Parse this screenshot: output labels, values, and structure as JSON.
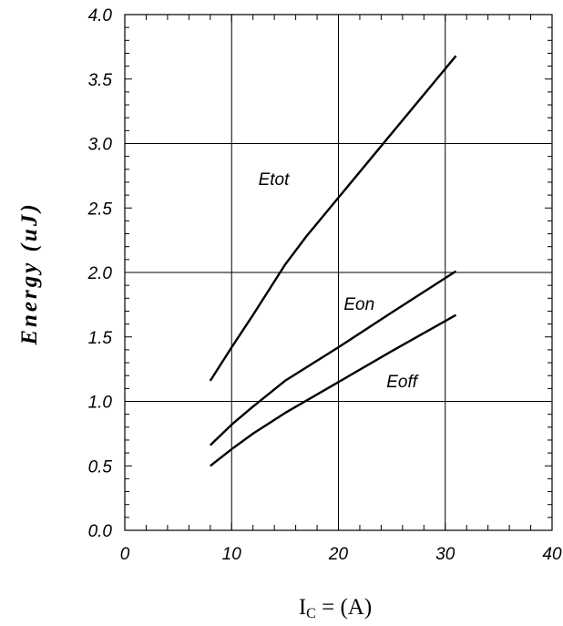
{
  "chart_data": {
    "type": "line",
    "xlabel_main": "I",
    "xlabel_sub": "C",
    "xlabel_rest": " = (A)",
    "ylabel": "Energy (uJ)",
    "xlim": [
      0,
      40
    ],
    "ylim": [
      0,
      4.0
    ],
    "x_ticks": [
      "0",
      "10",
      "20",
      "30",
      "40"
    ],
    "y_ticks": [
      "0.0",
      "0.5",
      "1.0",
      "1.5",
      "2.0",
      "2.5",
      "3.0",
      "3.5",
      "4.0"
    ],
    "grid": true,
    "series": [
      {
        "name": "Etot",
        "points": [
          [
            8,
            1.16
          ],
          [
            10,
            1.42
          ],
          [
            12,
            1.67
          ],
          [
            15,
            2.06
          ],
          [
            17,
            2.28
          ],
          [
            20,
            2.58
          ],
          [
            25,
            3.08
          ],
          [
            31,
            3.68
          ]
        ]
      },
      {
        "name": "Eon",
        "points": [
          [
            8,
            0.66
          ],
          [
            10,
            0.82
          ],
          [
            12,
            0.96
          ],
          [
            15,
            1.16
          ],
          [
            20,
            1.42
          ],
          [
            25,
            1.69
          ],
          [
            31,
            2.01
          ]
        ]
      },
      {
        "name": "Eoff",
        "points": [
          [
            8,
            0.5
          ],
          [
            10,
            0.63
          ],
          [
            12,
            0.75
          ],
          [
            15,
            0.91
          ],
          [
            20,
            1.15
          ],
          [
            25,
            1.39
          ],
          [
            31,
            1.67
          ]
        ]
      }
    ]
  }
}
